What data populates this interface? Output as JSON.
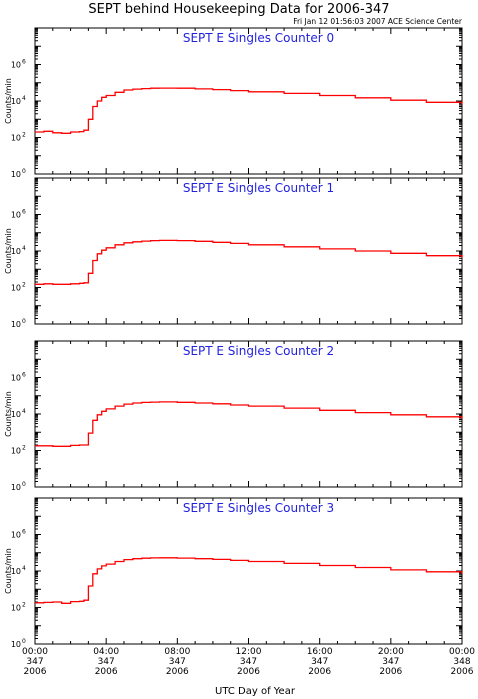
{
  "title": "SEPT behind Housekeeping Data for 2006-347",
  "timestamp": "Fri Jan 12 01:56:03 2007 ACE Science Center",
  "xlabel": "UTC Day of Year",
  "ylabel": "Counts/min",
  "colors": {
    "trace": "#ff0000",
    "panel_title": "#2222dd",
    "axes": "#000000"
  },
  "x_ticks": [
    {
      "hours": 0,
      "time": "00:00",
      "doy": "347",
      "year": "2006"
    },
    {
      "hours": 4,
      "time": "04:00",
      "doy": "347",
      "year": "2006"
    },
    {
      "hours": 8,
      "time": "08:00",
      "doy": "347",
      "year": "2006"
    },
    {
      "hours": 12,
      "time": "12:00",
      "doy": "347",
      "year": "2006"
    },
    {
      "hours": 16,
      "time": "16:00",
      "doy": "347",
      "year": "2006"
    },
    {
      "hours": 20,
      "time": "20:00",
      "doy": "347",
      "year": "2006"
    },
    {
      "hours": 24,
      "time": "00:00",
      "doy": "348",
      "year": "2006"
    }
  ],
  "y_ticks": [
    {
      "exp": 0,
      "base": "10",
      "sup": "0"
    },
    {
      "exp": 2,
      "base": "10",
      "sup": "2"
    },
    {
      "exp": 4,
      "base": "10",
      "sup": "4"
    },
    {
      "exp": 6,
      "base": "10",
      "sup": "6"
    }
  ],
  "chart_data": [
    {
      "type": "line",
      "title": "SEPT E Singles Counter 0",
      "xlabel": "UTC Day of Year",
      "ylabel": "Counts/min",
      "xlim": [
        0,
        24
      ],
      "ylim": [
        1,
        100000000
      ],
      "yscale": "log",
      "x": [
        0,
        0.5,
        1,
        1.5,
        2,
        2.5,
        2.75,
        3,
        3.25,
        3.5,
        3.75,
        4,
        4.5,
        5,
        5.5,
        6,
        6.5,
        7,
        8,
        9,
        10,
        11,
        12,
        14,
        16,
        18,
        20,
        22,
        24
      ],
      "y": [
        200,
        220,
        180,
        170,
        200,
        210,
        250,
        1000,
        5000,
        10000,
        16000,
        20000,
        30000,
        40000,
        45000,
        48000,
        50000,
        51000,
        50000,
        46000,
        42000,
        37000,
        32000,
        26000,
        20000,
        15000,
        11000,
        8500,
        6500
      ]
    },
    {
      "type": "line",
      "title": "SEPT E Singles Counter 1",
      "xlabel": "UTC Day of Year",
      "ylabel": "Counts/min",
      "xlim": [
        0,
        24
      ],
      "ylim": [
        1,
        100000000
      ],
      "yscale": "log",
      "x": [
        0,
        0.5,
        1,
        1.5,
        2,
        2.5,
        2.75,
        3,
        3.25,
        3.5,
        3.75,
        4,
        4.5,
        5,
        5.5,
        6,
        6.5,
        7,
        8,
        9,
        10,
        11,
        12,
        14,
        16,
        18,
        20,
        22,
        24
      ],
      "y": [
        150,
        160,
        150,
        150,
        160,
        170,
        180,
        600,
        3000,
        7000,
        11000,
        15000,
        22000,
        28000,
        32000,
        35000,
        37000,
        38000,
        37000,
        34000,
        30000,
        26000,
        22000,
        17000,
        13000,
        10000,
        7500,
        5500,
        4200
      ]
    },
    {
      "type": "line",
      "title": "SEPT E Singles Counter 2",
      "xlabel": "UTC Day of Year",
      "ylabel": "Counts/min",
      "xlim": [
        0,
        24
      ],
      "ylim": [
        1,
        100000000
      ],
      "yscale": "log",
      "x": [
        0,
        0.5,
        1,
        1.5,
        2,
        2.5,
        2.75,
        3,
        3.25,
        3.5,
        3.75,
        4,
        4.5,
        5,
        5.5,
        6,
        6.5,
        7,
        8,
        9,
        10,
        11,
        12,
        14,
        16,
        18,
        20,
        22,
        24
      ],
      "y": [
        180,
        180,
        170,
        170,
        190,
        200,
        200,
        900,
        4500,
        9000,
        14000,
        19000,
        27000,
        35000,
        40000,
        43000,
        45000,
        46000,
        44000,
        40000,
        36000,
        31000,
        27000,
        21000,
        16000,
        12000,
        9000,
        7000,
        5500
      ]
    },
    {
      "type": "line",
      "title": "SEPT E Singles Counter 3",
      "xlabel": "UTC Day of Year",
      "ylabel": "Counts/min",
      "xlim": [
        0,
        24
      ],
      "ylim": [
        1,
        100000000
      ],
      "yscale": "log",
      "x": [
        0,
        0.5,
        1,
        1.5,
        2,
        2.5,
        2.75,
        3,
        3.25,
        3.5,
        3.75,
        4,
        4.5,
        5,
        5.5,
        6,
        6.5,
        7,
        8,
        9,
        10,
        11,
        12,
        14,
        16,
        18,
        20,
        22,
        24
      ],
      "y": [
        180,
        190,
        200,
        170,
        210,
        220,
        250,
        1500,
        7000,
        13000,
        19000,
        24000,
        33000,
        42000,
        47000,
        50000,
        52000,
        53000,
        51000,
        47000,
        43000,
        38000,
        33000,
        26000,
        20000,
        15500,
        11500,
        9000,
        7000
      ]
    }
  ]
}
